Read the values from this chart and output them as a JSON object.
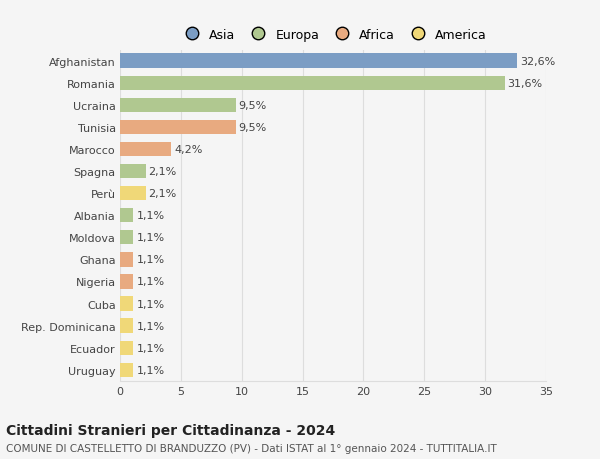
{
  "categories": [
    "Afghanistan",
    "Romania",
    "Ucraina",
    "Tunisia",
    "Marocco",
    "Spagna",
    "Perù",
    "Albania",
    "Moldova",
    "Ghana",
    "Nigeria",
    "Cuba",
    "Rep. Dominicana",
    "Ecuador",
    "Uruguay"
  ],
  "values": [
    32.6,
    31.6,
    9.5,
    9.5,
    4.2,
    2.1,
    2.1,
    1.1,
    1.1,
    1.1,
    1.1,
    1.1,
    1.1,
    1.1,
    1.1
  ],
  "labels": [
    "32,6%",
    "31,6%",
    "9,5%",
    "9,5%",
    "4,2%",
    "2,1%",
    "2,1%",
    "1,1%",
    "1,1%",
    "1,1%",
    "1,1%",
    "1,1%",
    "1,1%",
    "1,1%",
    "1,1%"
  ],
  "continents": [
    "Asia",
    "Europa",
    "Europa",
    "Africa",
    "Africa",
    "Europa",
    "America",
    "Europa",
    "Europa",
    "Africa",
    "Africa",
    "America",
    "America",
    "America",
    "America"
  ],
  "colors": {
    "Asia": "#7b9dc4",
    "Europa": "#b0c890",
    "Africa": "#e8aa80",
    "America": "#f0d878"
  },
  "title": "Cittadini Stranieri per Cittadinanza - 2024",
  "subtitle": "COMUNE DI CASTELLETTO DI BRANDUZZO (PV) - Dati ISTAT al 1° gennaio 2024 - TUTTITALIA.IT",
  "xlim": [
    0,
    35
  ],
  "xticks": [
    0,
    5,
    10,
    15,
    20,
    25,
    30,
    35
  ],
  "background_color": "#f5f5f5",
  "plot_bg_color": "#f5f5f5",
  "grid_color": "#dddddd",
  "bar_height": 0.65,
  "title_fontsize": 10,
  "subtitle_fontsize": 7.5,
  "tick_fontsize": 8,
  "label_fontsize": 8,
  "legend_fontsize": 9
}
